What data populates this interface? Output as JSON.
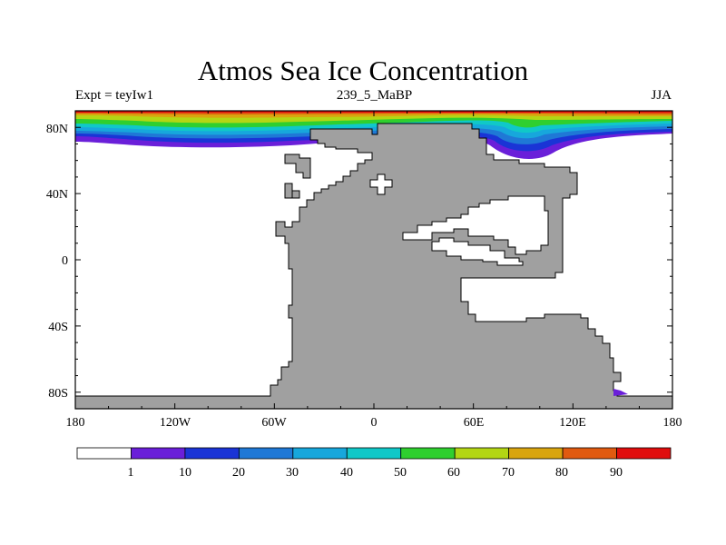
{
  "title": "Atmos Sea Ice Concentration",
  "subtitle_left": "Expt = teyIw1",
  "subtitle_center": "239_5_MaBP",
  "subtitle_right": "JJA",
  "y_tick_labels": [
    "80N",
    "40N",
    "0",
    "40S",
    "80S"
  ],
  "x_tick_labels": [
    "180",
    "120W",
    "60W",
    "0",
    "60E",
    "120E",
    "180"
  ],
  "colorbar": {
    "labels": [
      "1",
      "10",
      "20",
      "30",
      "40",
      "50",
      "60",
      "70",
      "80",
      "90"
    ],
    "colors": [
      "#ffffff",
      "#6a1fd9",
      "#1a34d6",
      "#1f78d6",
      "#17a7dc",
      "#10c8c8",
      "#2fcf2f",
      "#b3d614",
      "#d9a50f",
      "#e05a10",
      "#e00d0d"
    ]
  },
  "land_color": "#a0a0a0"
}
